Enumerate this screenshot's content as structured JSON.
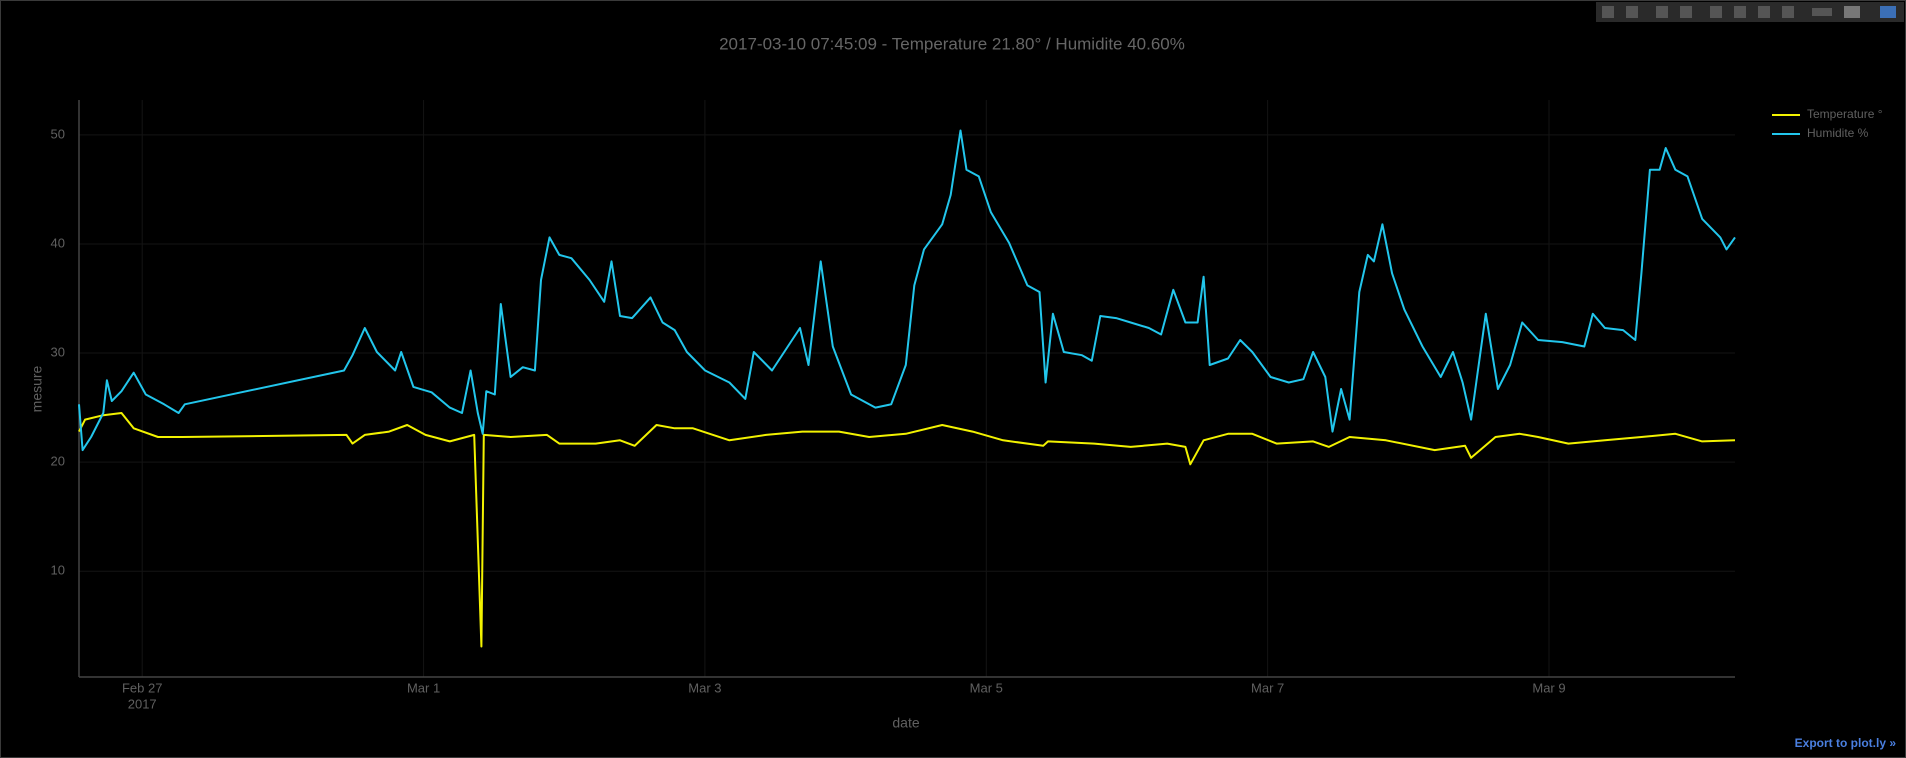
{
  "chart_data": {
    "type": "line",
    "title": "2017-03-10 07:45:09 - Temperature 21.80° / Humidite 40.60%",
    "x_label": "date",
    "y_label": "mesure",
    "xlim": [
      "2017-02-26 13:13",
      "2017-03-10 07:44"
    ],
    "xticks": [
      {
        "value": "2017-02-27",
        "label": "Feb 27",
        "year": "2017"
      },
      {
        "value": "2017-03-01",
        "label": "Mar 1"
      },
      {
        "value": "2017-03-03",
        "label": "Mar 3"
      },
      {
        "value": "2017-03-05",
        "label": "Mar 5"
      },
      {
        "value": "2017-03-07",
        "label": "Mar 7"
      },
      {
        "value": "2017-03-09",
        "label": "Mar 9"
      }
    ],
    "ylim": [
      0.3,
      53.2
    ],
    "yticks": [
      10,
      20,
      30,
      40,
      50
    ],
    "grid": true,
    "legend": "top-right",
    "series": [
      {
        "name": "Temperature °",
        "color": "#f2f200",
        "x": [
          "2017-02-26 13:13",
          "2017-02-26 14:15",
          "2017-02-26 17:22",
          "2017-02-26 20:28",
          "2017-02-26 22:33",
          "2017-02-27 02:42",
          "2017-02-27 06:51",
          "2017-02-28 10:51",
          "2017-02-28 11:53",
          "2017-02-28 13:58",
          "2017-02-28 18:07",
          "2017-02-28 21:13",
          "2017-03-01 00:20",
          "2017-03-01 04:29",
          "2017-03-01 08:38",
          "2017-03-01 09:52",
          "2017-03-01 10:17",
          "2017-03-01 14:51",
          "2017-03-01 21:04",
          "2017-03-01 23:09",
          "2017-03-02 05:22",
          "2017-03-02 09:31",
          "2017-03-02 12:01",
          "2017-03-02 15:44",
          "2017-03-02 18:51",
          "2017-03-02 21:58",
          "2017-03-03 04:11",
          "2017-03-03 10:25",
          "2017-03-03 16:38",
          "2017-03-03 22:52",
          "2017-03-04 04:02",
          "2017-03-04 10:16",
          "2017-03-04 16:29",
          "2017-03-04 21:40",
          "2017-03-05 02:52",
          "2017-03-05 09:43",
          "2017-03-05 10:32",
          "2017-03-05 18:25",
          "2017-03-06 00:38",
          "2017-03-06 06:52",
          "2017-03-06 09:58",
          "2017-03-06 10:48",
          "2017-03-06 13:05",
          "2017-03-06 17:14",
          "2017-03-06 21:23",
          "2017-03-07 01:32",
          "2017-03-07 07:45",
          "2017-03-07 10:27",
          "2017-03-07 13:59",
          "2017-03-07 20:12",
          "2017-03-08 04:30",
          "2017-03-08 09:41",
          "2017-03-08 10:43",
          "2017-03-08 14:52",
          "2017-03-08 19:01",
          "2017-03-08 22:08",
          "2017-03-09 03:19",
          "2017-03-09 09:32",
          "2017-03-09 15:46",
          "2017-03-09 21:34",
          "2017-03-10 02:08",
          "2017-03-10 07:44"
        ],
        "values": [
          22.8,
          23.9,
          24.3,
          24.5,
          23.1,
          22.3,
          22.3,
          22.5,
          21.7,
          22.5,
          22.8,
          23.4,
          22.5,
          21.9,
          22.5,
          3.1,
          22.5,
          22.3,
          22.5,
          21.7,
          21.7,
          22.0,
          21.5,
          23.4,
          23.1,
          23.1,
          22.0,
          22.5,
          22.8,
          22.8,
          22.3,
          22.6,
          23.4,
          22.8,
          22.0,
          21.5,
          21.9,
          21.7,
          21.4,
          21.7,
          21.4,
          19.8,
          22.0,
          22.6,
          22.6,
          21.7,
          21.9,
          21.4,
          22.3,
          22.0,
          21.1,
          21.5,
          20.4,
          22.3,
          22.6,
          22.3,
          21.7,
          22.0,
          22.3,
          22.6,
          21.9,
          22.0
        ]
      },
      {
        "name": "Humidite %",
        "color": "#22c6ec",
        "x": [
          "2017-02-26 13:13",
          "2017-02-26 13:50",
          "2017-02-26 15:17",
          "2017-02-26 17:22",
          "2017-02-26 17:59",
          "2017-02-26 18:49",
          "2017-02-26 20:28",
          "2017-02-26 22:33",
          "2017-02-27 00:37",
          "2017-02-27 03:44",
          "2017-02-27 06:13",
          "2017-02-27 07:16",
          "2017-02-28 10:26",
          "2017-02-28 11:53",
          "2017-02-28 13:58",
          "2017-02-28 16:02",
          "2017-02-28 19:09",
          "2017-02-28 20:11",
          "2017-02-28 22:16",
          "2017-03-01 01:22",
          "2017-03-01 04:29",
          "2017-03-01 06:33",
          "2017-03-01 08:01",
          "2017-03-01 09:15",
          "2017-03-01 10:05",
          "2017-03-01 10:42",
          "2017-03-01 12:09",
          "2017-03-01 13:11",
          "2017-03-01 14:51",
          "2017-03-01 16:56",
          "2017-03-01 19:00",
          "2017-03-01 20:02",
          "2017-03-01 21:29",
          "2017-03-01 23:09",
          "2017-03-02 01:13",
          "2017-03-02 04:20",
          "2017-03-02 06:49",
          "2017-03-02 08:04",
          "2017-03-02 09:31",
          "2017-03-02 11:35",
          "2017-03-02 14:43",
          "2017-03-02 16:47",
          "2017-03-02 18:51",
          "2017-03-02 20:56",
          "2017-03-03 00:02",
          "2017-03-03 04:11",
          "2017-03-03 06:53",
          "2017-03-03 08:20",
          "2017-03-03 11:27",
          "2017-03-03 13:31",
          "2017-03-03 16:13",
          "2017-03-03 17:40",
          "2017-03-03 19:45",
          "2017-03-03 21:49",
          "2017-03-04 00:56",
          "2017-03-04 05:05",
          "2017-03-04 07:47",
          "2017-03-04 10:16",
          "2017-03-04 11:43",
          "2017-03-04 13:23",
          "2017-03-04 16:29",
          "2017-03-04 17:56",
          "2017-03-04 19:36",
          "2017-03-04 20:38",
          "2017-03-04 22:43",
          "2017-03-05 00:47",
          "2017-03-05 03:54",
          "2017-03-05 07:01",
          "2017-03-05 09:05",
          "2017-03-05 10:07",
          "2017-03-05 11:22",
          "2017-03-05 13:14",
          "2017-03-05 16:20",
          "2017-03-05 18:00",
          "2017-03-05 19:27",
          "2017-03-05 22:09",
          "2017-03-06 00:38",
          "2017-03-06 03:45",
          "2017-03-06 05:50",
          "2017-03-06 07:54",
          "2017-03-06 09:58",
          "2017-03-06 12:03",
          "2017-03-06 13:05",
          "2017-03-06 14:07",
          "2017-03-06 17:14",
          "2017-03-06 19:19",
          "2017-03-06 21:23",
          "2017-03-07 00:30",
          "2017-03-07 03:37",
          "2017-03-07 06:06",
          "2017-03-07 07:45",
          "2017-03-07 09:50",
          "2017-03-07 11:04",
          "2017-03-07 12:32",
          "2017-03-07 13:59",
          "2017-03-07 15:38",
          "2017-03-07 17:05",
          "2017-03-07 18:08",
          "2017-03-07 19:35",
          "2017-03-07 21:14",
          "2017-03-07 23:19",
          "2017-03-08 02:25",
          "2017-03-08 05:32",
          "2017-03-08 07:37",
          "2017-03-08 09:16",
          "2017-03-08 10:43",
          "2017-03-08 13:13",
          "2017-03-08 15:17",
          "2017-03-08 17:22",
          "2017-03-08 19:26",
          "2017-03-08 22:08",
          "2017-03-09 02:17",
          "2017-03-09 06:01",
          "2017-03-09 07:28",
          "2017-03-09 09:32",
          "2017-03-09 12:39",
          "2017-03-09 14:43",
          "2017-03-09 15:46",
          "2017-03-09 17:13",
          "2017-03-09 18:52",
          "2017-03-09 19:55",
          "2017-03-09 21:34",
          "2017-03-09 23:38",
          "2017-03-10 02:08",
          "2017-03-10 05:14",
          "2017-03-10 06:17",
          "2017-03-10 07:44"
        ],
        "values": [
          25.3,
          21.1,
          22.3,
          24.5,
          27.5,
          25.6,
          26.5,
          28.2,
          26.2,
          25.3,
          24.5,
          25.3,
          28.4,
          29.8,
          32.3,
          30.1,
          28.4,
          30.1,
          26.9,
          26.4,
          25.0,
          24.5,
          28.4,
          24.5,
          22.6,
          26.5,
          26.2,
          34.5,
          27.8,
          28.7,
          28.4,
          36.7,
          40.6,
          39.0,
          38.7,
          36.7,
          34.7,
          38.4,
          33.4,
          33.2,
          35.1,
          32.8,
          32.1,
          30.1,
          28.4,
          27.3,
          25.8,
          30.1,
          28.4,
          30.1,
          32.3,
          28.9,
          38.4,
          30.6,
          26.2,
          25.0,
          25.3,
          28.9,
          36.2,
          39.5,
          41.8,
          44.5,
          50.4,
          46.8,
          46.2,
          42.9,
          40.1,
          36.2,
          35.6,
          27.3,
          33.6,
          30.1,
          29.8,
          29.3,
          33.4,
          33.2,
          32.8,
          32.3,
          31.7,
          35.8,
          32.8,
          32.8,
          37.0,
          28.9,
          29.5,
          31.2,
          30.1,
          27.8,
          27.3,
          27.6,
          30.1,
          27.8,
          22.8,
          26.7,
          23.9,
          35.6,
          39.0,
          38.4,
          41.8,
          37.3,
          34.0,
          30.6,
          27.8,
          30.1,
          27.3,
          23.9,
          33.6,
          26.7,
          28.9,
          32.8,
          31.2,
          31.0,
          30.6,
          33.6,
          32.3,
          32.1,
          31.2,
          37.3,
          46.8,
          46.8,
          48.8,
          46.8,
          46.2,
          42.3,
          40.6,
          39.5,
          40.6
        ]
      }
    ],
    "export_link": "Export to plot.ly »"
  }
}
